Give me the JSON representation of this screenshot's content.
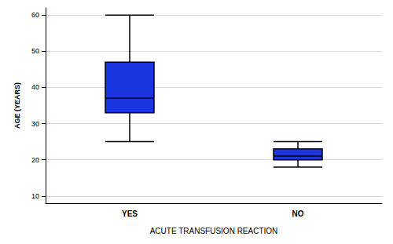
{
  "chart_data": {
    "type": "boxplot",
    "x_label": "ACUTE TRANSFUSION REACTION",
    "y_label": "AGE (YEARS)",
    "categories": [
      "YES",
      "NO"
    ],
    "values": [
      [
        25,
        33,
        37,
        47,
        60
      ],
      [
        18,
        20,
        21,
        23,
        25
      ]
    ],
    "color": "#1a35e0",
    "ylim": [
      8,
      62
    ],
    "yticks": [
      10,
      20,
      30,
      40,
      50,
      60
    ],
    "grid": true
  }
}
